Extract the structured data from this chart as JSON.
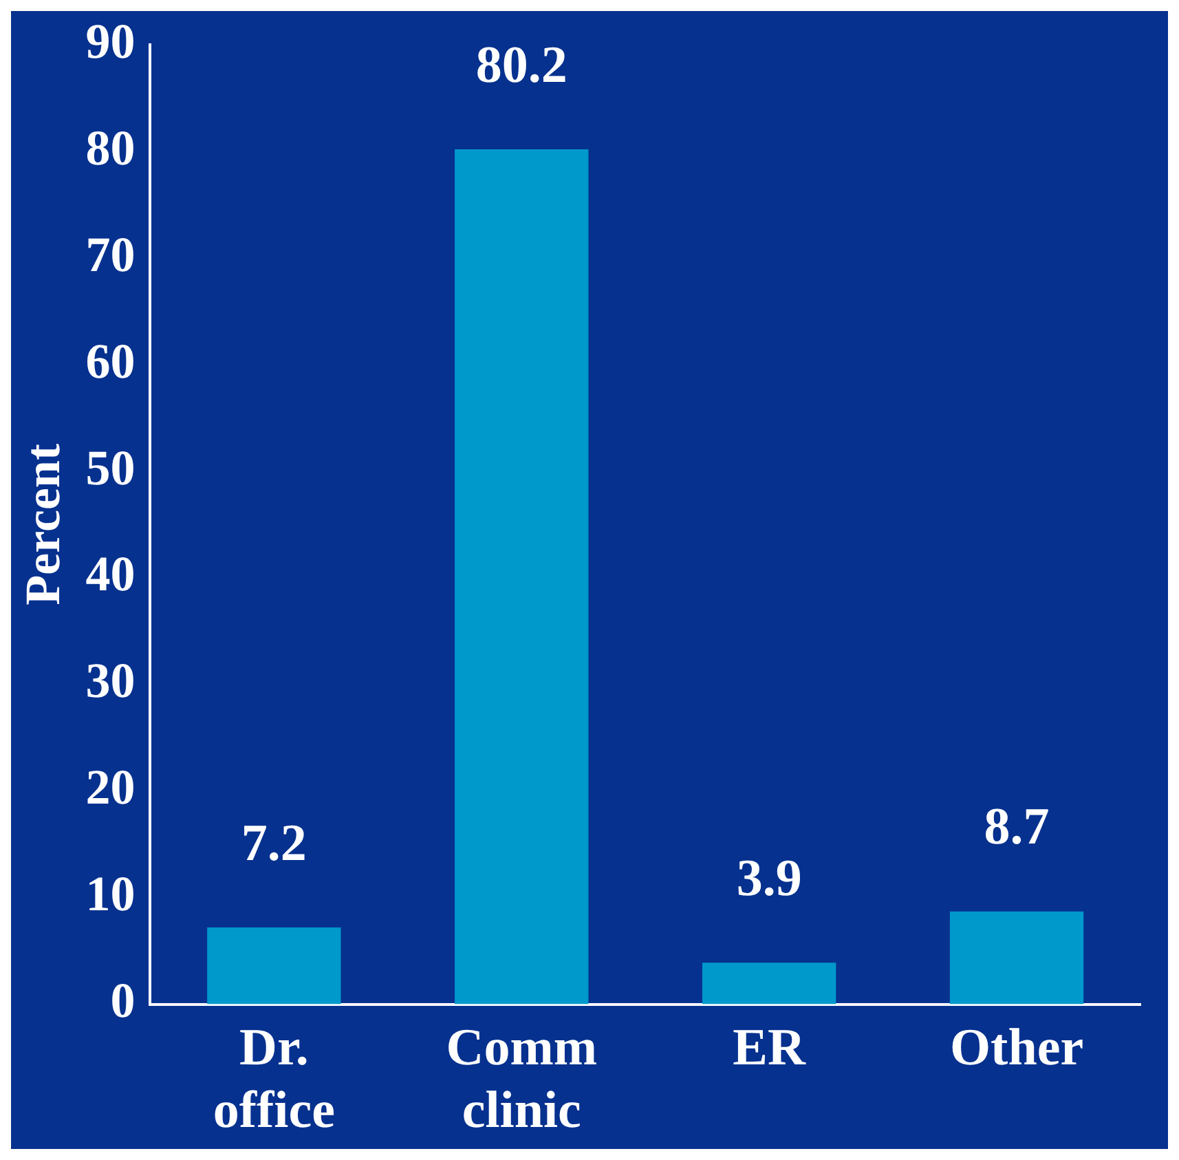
{
  "chart_data": {
    "type": "bar",
    "ylabel": "Percent",
    "categories": [
      "Dr. office",
      "Comm clinic",
      "ER",
      "Other"
    ],
    "values": [
      7.2,
      80.2,
      3.9,
      8.7
    ],
    "color": "#0099cc",
    "ylim": [
      0,
      90
    ],
    "yticks": [
      0,
      10,
      20,
      30,
      40,
      50,
      60,
      70,
      80,
      90
    ],
    "grid": false,
    "data_labels": true
  }
}
